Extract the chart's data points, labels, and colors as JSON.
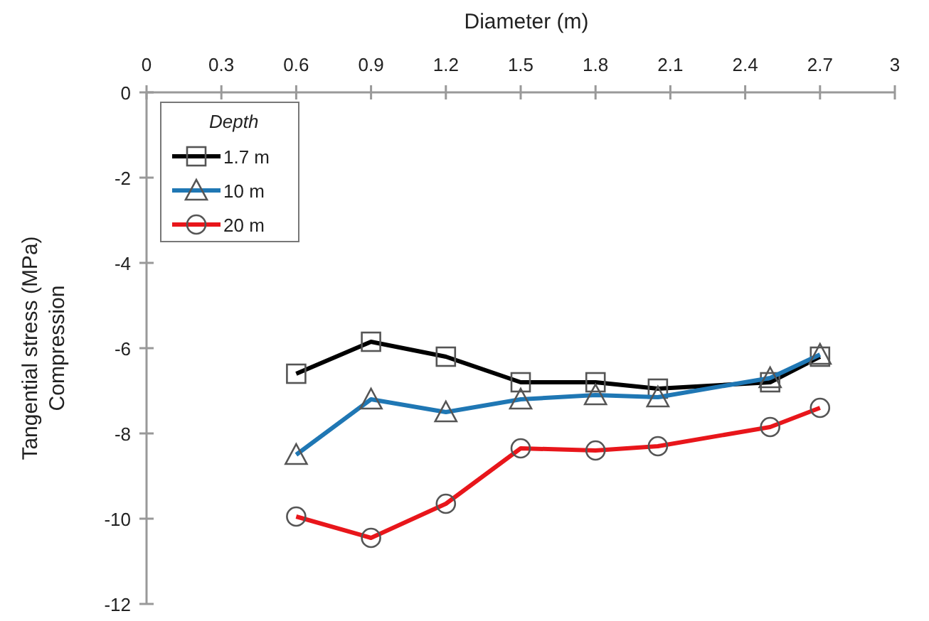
{
  "chart_data": {
    "type": "line",
    "xlabel": "Diameter (m)",
    "ylabel": "Tangential stress (MPa)\nCompression",
    "legend_title": "Depth",
    "legend": "top left",
    "grid": false,
    "x": [
      0.6,
      0.9,
      1.2,
      1.5,
      1.8,
      2.05,
      2.5,
      2.7
    ],
    "xlim": [
      0,
      3
    ],
    "xticks": [
      0,
      0.3,
      0.6,
      0.9,
      1.2,
      1.5,
      1.8,
      2.1,
      2.4,
      2.7,
      3
    ],
    "ylim": [
      -12,
      0
    ],
    "yticks": [
      -12,
      -10,
      -8,
      -6,
      -4,
      -2,
      0
    ],
    "series": [
      {
        "name": "1.7 m",
        "color": "#000000",
        "marker": "square",
        "values": [
          -6.6,
          -5.85,
          -6.2,
          -6.8,
          -6.8,
          -6.95,
          -6.8,
          -6.2
        ]
      },
      {
        "name": "10 m",
        "color": "#1f77b4",
        "marker": "triangle",
        "values": [
          -8.5,
          -7.2,
          -7.5,
          -7.2,
          -7.1,
          -7.15,
          -6.7,
          -6.15
        ]
      },
      {
        "name": "20 m",
        "color": "#e8161b",
        "marker": "circle",
        "values": [
          -9.95,
          -10.45,
          -9.65,
          -8.35,
          -8.4,
          -8.3,
          -7.85,
          -7.4
        ]
      }
    ]
  }
}
